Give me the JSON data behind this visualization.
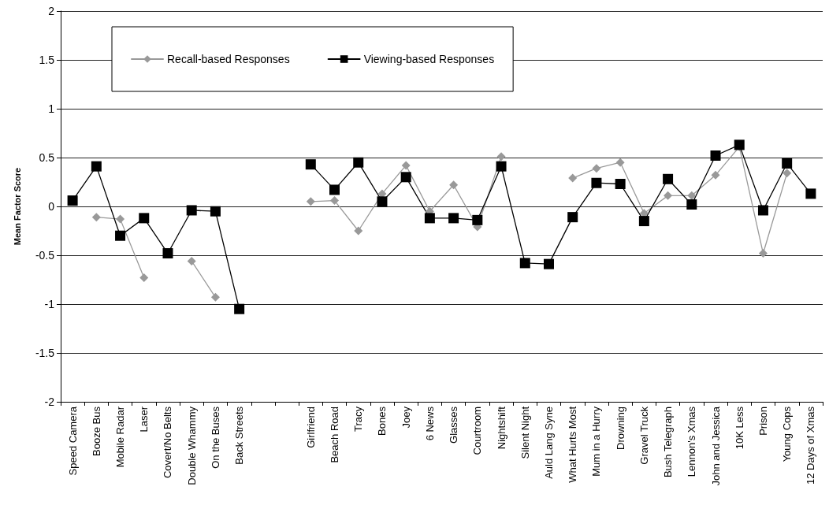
{
  "chart_data": {
    "type": "line",
    "ylabel": "Mean Factor Score",
    "categories": [
      "Speed Camera",
      "Booze Bus",
      "Mobile Radar",
      "Laser",
      "Covert/No Belts",
      "Double Whammy",
      "On the Buses",
      "Back Streets",
      null,
      null,
      "Girlfriend",
      "Beach Road",
      "Tracy",
      "Bones",
      "Joey",
      "6 News",
      "Glasses",
      "Courtroom",
      "Nightshift",
      "Silent Night",
      "Auld Lang Syne",
      "What Hurts Most",
      "Mum in a Hurry",
      "Drowning",
      "Gravel Truck",
      "Bush Telegraph",
      "Lennon's Xmas",
      "John and Jessica",
      "10K Less",
      "Prison",
      "Young Cops",
      "12 Days of Xmas"
    ],
    "series": [
      {
        "name": "Recall-based Responses",
        "color": "#999999",
        "marker": "diamond",
        "values": [
          null,
          -0.11,
          -0.13,
          -0.73,
          null,
          -0.56,
          -0.93,
          null,
          null,
          null,
          0.05,
          0.06,
          -0.25,
          0.13,
          0.42,
          -0.05,
          0.22,
          -0.21,
          0.51,
          null,
          null,
          0.29,
          0.39,
          0.45,
          -0.07,
          0.11,
          0.11,
          0.32,
          0.61,
          -0.48,
          0.34,
          null
        ]
      },
      {
        "name": "Viewing-based Responses",
        "color": "#000000",
        "marker": "square",
        "values": [
          0.06,
          0.41,
          -0.3,
          -0.12,
          -0.48,
          -0.04,
          -0.05,
          -1.05,
          null,
          null,
          0.43,
          0.17,
          0.45,
          0.05,
          0.3,
          -0.12,
          -0.12,
          -0.14,
          0.41,
          -0.58,
          -0.59,
          -0.11,
          0.24,
          0.23,
          -0.15,
          0.28,
          0.02,
          0.52,
          0.63,
          -0.04,
          0.44,
          0.13
        ]
      }
    ],
    "ylim": [
      -2,
      2
    ],
    "yticks": [
      -2,
      -1.5,
      -1,
      -0.5,
      0,
      0.5,
      1,
      1.5,
      2
    ],
    "grid": "y",
    "legend": "top left",
    "line_style": "solid"
  }
}
